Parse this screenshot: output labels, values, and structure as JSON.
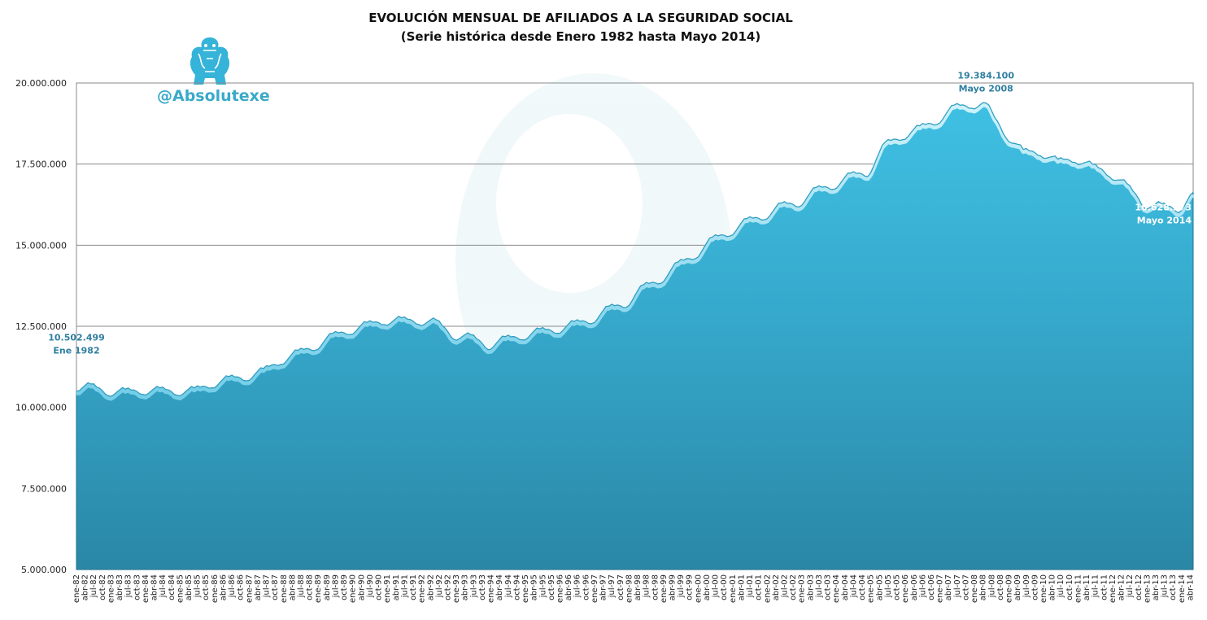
{
  "chart_data": {
    "type": "area",
    "title": "EVOLUCIÓN MENSUAL DE AFILIADOS A LA SEGURIDAD SOCIAL",
    "subtitle": "(Serie histórica desde Enero 1982 hasta Mayo 2014)",
    "watermark": "@Absolutexe",
    "xlabel": "",
    "ylabel": "",
    "ylim": [
      5000000,
      20000000
    ],
    "y_ticks": [
      5000000,
      7500000,
      10000000,
      12500000,
      15000000,
      17500000,
      20000000
    ],
    "y_tick_labels": [
      "5.000.000",
      "7.500.000",
      "10.000.000",
      "12.500.000",
      "15.000.000",
      "17.500.000",
      "20.000.000"
    ],
    "grid": true,
    "x_start": "1982-01",
    "x_end": "2014-05",
    "x_tick_interval_months": 3,
    "month_abbr": [
      "ene",
      "abr",
      "jul",
      "oct"
    ],
    "series": [
      {
        "name": "",
        "color": "#3ab6d9",
        "points": [
          [
            "1982-01",
            10502499
          ],
          [
            "1982-06",
            10720000
          ],
          [
            "1982-12",
            10360000
          ],
          [
            "1983-06",
            10560000
          ],
          [
            "1983-12",
            10400000
          ],
          [
            "1984-06",
            10600000
          ],
          [
            "1984-12",
            10370000
          ],
          [
            "1985-06",
            10600000
          ],
          [
            "1985-12",
            10600000
          ],
          [
            "1986-06",
            10950000
          ],
          [
            "1986-12",
            10820000
          ],
          [
            "1987-06",
            11200000
          ],
          [
            "1987-12",
            11320000
          ],
          [
            "1988-06",
            11760000
          ],
          [
            "1988-12",
            11760000
          ],
          [
            "1989-06",
            12280000
          ],
          [
            "1989-12",
            12250000
          ],
          [
            "1990-06",
            12620000
          ],
          [
            "1990-12",
            12550000
          ],
          [
            "1991-06",
            12760000
          ],
          [
            "1991-12",
            12550000
          ],
          [
            "1992-06",
            12700000
          ],
          [
            "1992-12",
            12100000
          ],
          [
            "1993-06",
            12240000
          ],
          [
            "1993-12",
            11780000
          ],
          [
            "1994-06",
            12180000
          ],
          [
            "1994-12",
            12080000
          ],
          [
            "1995-06",
            12420000
          ],
          [
            "1995-12",
            12280000
          ],
          [
            "1996-06",
            12650000
          ],
          [
            "1996-12",
            12580000
          ],
          [
            "1997-06",
            13120000
          ],
          [
            "1997-12",
            13080000
          ],
          [
            "1998-06",
            13780000
          ],
          [
            "1998-12",
            13820000
          ],
          [
            "1999-06",
            14480000
          ],
          [
            "1999-12",
            14580000
          ],
          [
            "2000-06",
            15250000
          ],
          [
            "2000-12",
            15280000
          ],
          [
            "2001-06",
            15820000
          ],
          [
            "2001-12",
            15780000
          ],
          [
            "2002-06",
            16300000
          ],
          [
            "2002-12",
            16180000
          ],
          [
            "2003-06",
            16780000
          ],
          [
            "2003-12",
            16720000
          ],
          [
            "2004-06",
            17220000
          ],
          [
            "2004-12",
            17120000
          ],
          [
            "2005-06",
            18180000
          ],
          [
            "2005-12",
            18250000
          ],
          [
            "2006-06",
            18680000
          ],
          [
            "2006-12",
            18720000
          ],
          [
            "2007-06",
            19320000
          ],
          [
            "2007-12",
            19220000
          ],
          [
            "2008-05",
            19384100
          ],
          [
            "2008-12",
            18300000
          ],
          [
            "2009-06",
            17950000
          ],
          [
            "2009-12",
            17750000
          ],
          [
            "2010-06",
            17650000
          ],
          [
            "2010-12",
            17550000
          ],
          [
            "2011-06",
            17500000
          ],
          [
            "2011-12",
            17100000
          ],
          [
            "2012-06",
            16900000
          ],
          [
            "2012-12",
            16150000
          ],
          [
            "2013-06",
            16280000
          ],
          [
            "2013-12",
            16000000
          ],
          [
            "2014-05",
            16628373
          ]
        ]
      }
    ],
    "annotations": [
      {
        "value": "10.502.499",
        "label": "Ene 1982",
        "date": "1982-01",
        "color": "#2f7fa0"
      },
      {
        "value": "19.384.100",
        "label": "Mayo 2008",
        "date": "2008-05",
        "color": "#2f7fa0"
      },
      {
        "value": "16.628.373",
        "label": "Mayo 2014",
        "date": "2014-05",
        "color": "#ffffff"
      }
    ]
  }
}
